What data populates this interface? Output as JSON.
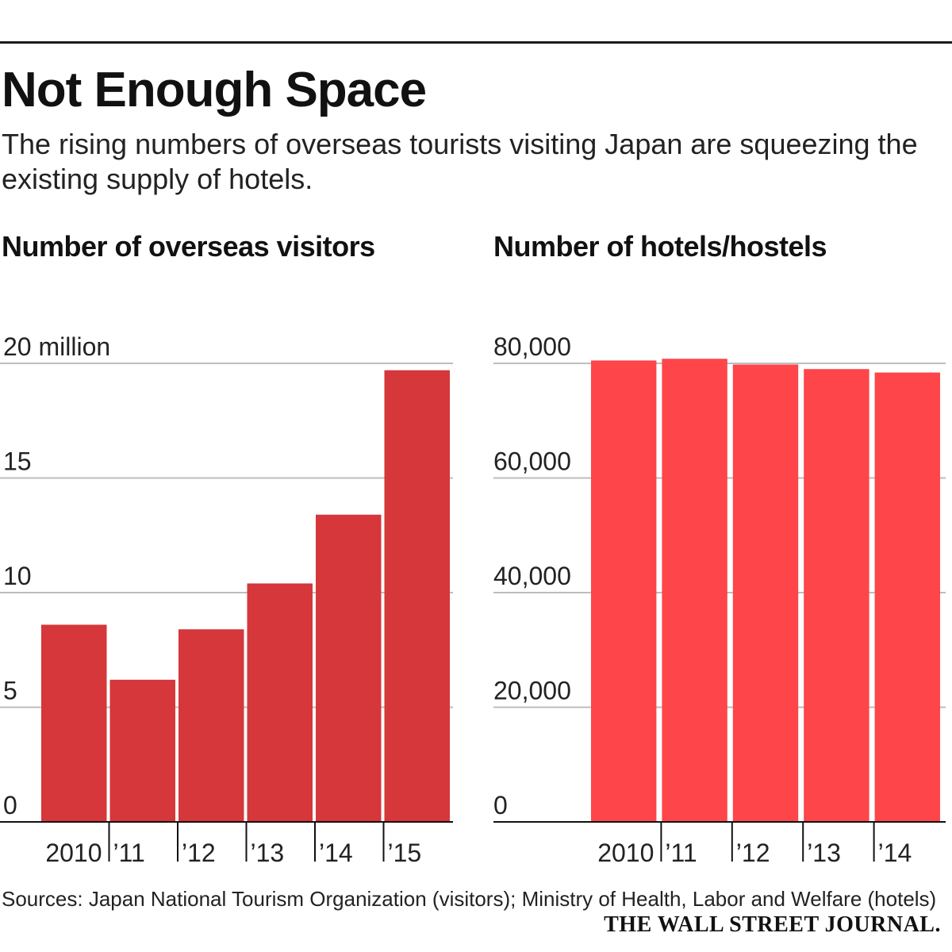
{
  "title": "Not Enough Space",
  "subtitle": "The rising numbers of overseas tourists visiting Japan are squeezing the existing supply of hotels.",
  "sources": "Sources: Japan National Tourism Organization (visitors); Ministry of Health, Labor and Welfare (hotels)",
  "publisher": "THE WALL STREET JOURNAL.",
  "colors": {
    "visitors_bar": "#d5373a",
    "hotels_bar": "#fe454a",
    "grid": "#bdbdbd",
    "axis": "#111111"
  },
  "chart_data": [
    {
      "type": "bar",
      "title": "Number of overseas visitors",
      "categories": [
        "2010",
        "’11",
        "’12",
        "’13",
        "’14",
        "’15"
      ],
      "values": [
        8.6,
        6.2,
        8.4,
        10.4,
        13.4,
        19.7
      ],
      "ytick_labels": [
        "20 million",
        "15",
        "10",
        "5",
        "0"
      ],
      "ytick_values": [
        20,
        15,
        10,
        5,
        0
      ],
      "ylim": [
        0,
        20
      ],
      "xlabel": "",
      "ylabel": "",
      "grid": true
    },
    {
      "type": "bar",
      "title": "Number of hotels/hostels",
      "categories": [
        "2010",
        "’11",
        "’12",
        "’13",
        "’14"
      ],
      "values": [
        80500,
        80800,
        79800,
        79000,
        78400
      ],
      "ytick_labels": [
        "80,000",
        "60,000",
        "40,000",
        "20,000",
        "0"
      ],
      "ytick_values": [
        80000,
        60000,
        40000,
        20000,
        0
      ],
      "ylim": [
        0,
        80000
      ],
      "xlabel": "",
      "ylabel": "",
      "grid": true
    }
  ]
}
